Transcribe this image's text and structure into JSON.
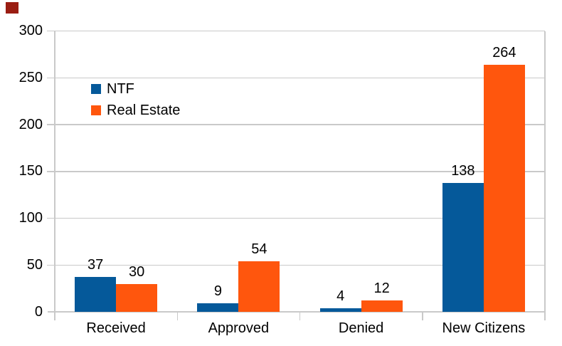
{
  "chart_data": {
    "type": "bar",
    "categories": [
      "Received",
      "Approved",
      "Denied",
      "New Citizens"
    ],
    "series": [
      {
        "name": "NTF",
        "color": "#05599a",
        "values": [
          37,
          9,
          4,
          138
        ]
      },
      {
        "name": "Real Estate",
        "color": "#ff560d",
        "values": [
          30,
          54,
          12,
          264
        ]
      }
    ],
    "title": "",
    "xlabel": "",
    "ylabel": "",
    "ylim": [
      0,
      300
    ],
    "yticks": [
      0,
      50,
      100,
      150,
      200,
      250,
      300
    ],
    "grid": true,
    "legend_position": "inside-upper-left",
    "data_labels": true
  },
  "colors": {
    "background": "#ffffff",
    "grid": "#c9c9c9",
    "axis": "#c9c9c9",
    "text": "#000000",
    "recording_indicator": "#9a1d12"
  }
}
